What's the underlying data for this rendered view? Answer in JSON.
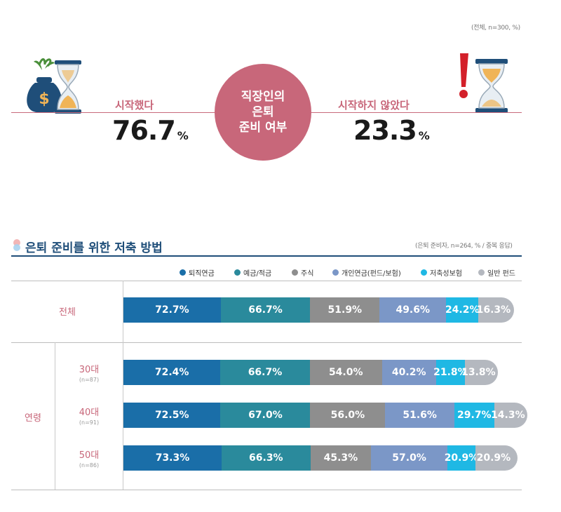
{
  "top": {
    "note": "(전체, n=300, %)",
    "center": [
      "직장인의",
      "은퇴",
      "준비 여부"
    ],
    "left": {
      "label": "시작했다",
      "value": "76.7",
      "unit": "%"
    },
    "right": {
      "label": "시작하지 않았다",
      "value": "23.3",
      "unit": "%"
    },
    "colors": {
      "accent": "#c8677a"
    }
  },
  "section": {
    "title": "은퇴 준비를 위한 저축 방법",
    "note": "(은퇴 준비자, n=264, % / 중복 응답)"
  },
  "legend": [
    {
      "label": "퇴직연금",
      "color": "#1a6ea8"
    },
    {
      "label": "예금/적금",
      "color": "#2a8a9c"
    },
    {
      "label": "주식",
      "color": "#8e8e8e"
    },
    {
      "label": "개인연금(펀드/보험)",
      "color": "#7b97c7"
    },
    {
      "label": "저축성보험",
      "color": "#1fb8e4"
    },
    {
      "label": "일반 펀드",
      "color": "#b4b8bf"
    }
  ],
  "rows": {
    "total": "전체",
    "age_group": "연령",
    "r30": {
      "label": "30대",
      "n": "(n=87)"
    },
    "r40": {
      "label": "40대",
      "n": "(n=91)"
    },
    "r50": {
      "label": "50대",
      "n": "(n=86)"
    }
  },
  "chart_data": {
    "type": "bar",
    "stacked": true,
    "orientation": "horizontal",
    "categories": [
      "전체",
      "30대",
      "40대",
      "50대"
    ],
    "series": [
      {
        "name": "퇴직연금",
        "values": [
          72.7,
          72.4,
          72.5,
          73.3
        ],
        "labels": [
          "72.7%",
          "72.4%",
          "72.5%",
          "73.3%"
        ]
      },
      {
        "name": "예금/적금",
        "values": [
          66.7,
          66.7,
          67.0,
          66.3
        ],
        "labels": [
          "66.7%",
          "66.7%",
          "67.0%",
          "66.3%"
        ]
      },
      {
        "name": "주식",
        "values": [
          51.9,
          54.0,
          56.0,
          45.3
        ],
        "labels": [
          "51.9%",
          "54.0%",
          "56.0%",
          "45.3%"
        ]
      },
      {
        "name": "개인연금(펀드/보험)",
        "values": [
          49.6,
          40.2,
          51.6,
          57.0
        ],
        "labels": [
          "49.6%",
          "40.2%",
          "51.6%",
          "57.0%"
        ]
      },
      {
        "name": "저축성보험",
        "values": [
          24.2,
          21.8,
          29.7,
          20.9
        ],
        "labels": [
          "24.2%",
          "21.8%",
          "29.7%",
          "20.9%"
        ]
      },
      {
        "name": "일반 펀드",
        "values": [
          16.3,
          13.8,
          14.3,
          20.9
        ],
        "labels": [
          "16.3%",
          "13.8%",
          "14.3%",
          "20.9%"
        ]
      }
    ]
  }
}
